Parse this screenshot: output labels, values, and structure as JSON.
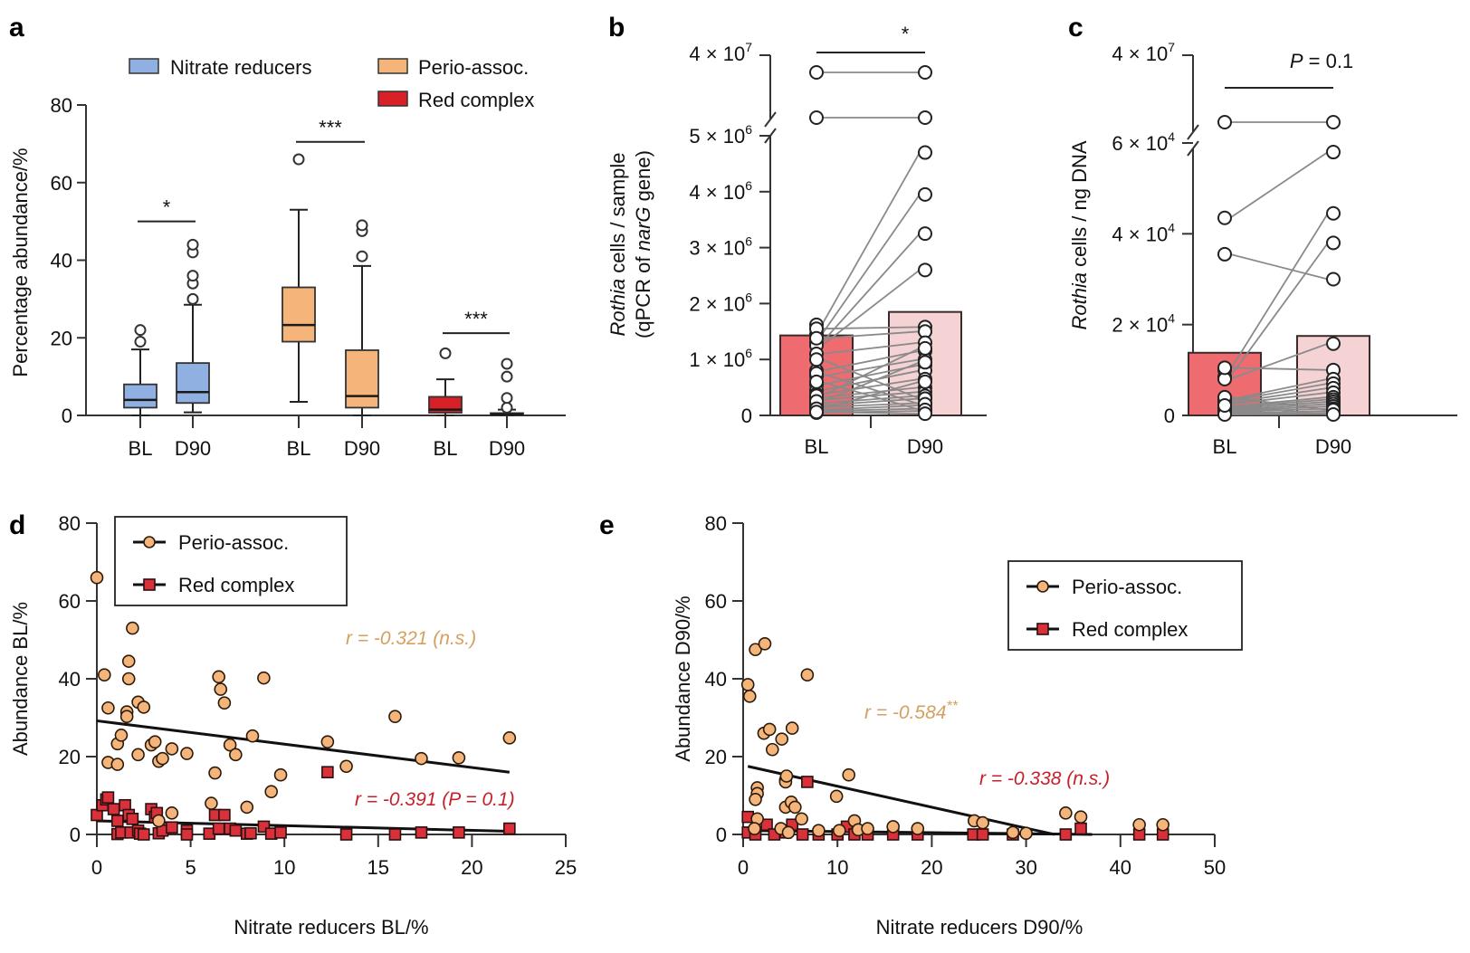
{
  "chart_data": [
    {
      "panel": "a",
      "type": "box",
      "ylabel": "Percentage abundance/%",
      "ylim": [
        0,
        80
      ],
      "yticks": [
        0,
        20,
        40,
        60,
        80
      ],
      "legend": [
        {
          "label": "Nitrate reducers",
          "color": "#8fb0e0"
        },
        {
          "label": "Perio-assoc.",
          "color": "#f5b57a"
        },
        {
          "label": "Red complex",
          "color": "#d92027"
        }
      ],
      "groups": [
        {
          "name": "Nitrate reducers",
          "color": "#8fb0e0",
          "significance": "*",
          "sig_y": 50,
          "boxes": [
            {
              "label": "BL",
              "min": 0,
              "q1": 2,
              "median": 4,
              "q3": 8,
              "max": 17,
              "outliers": [
                19,
                22
              ]
            },
            {
              "label": "D90",
              "min": 0.8,
              "q1": 3.2,
              "median": 6,
              "q3": 13.5,
              "max": 28.5,
              "outliers": [
                30,
                34,
                36,
                42,
                44
              ]
            }
          ]
        },
        {
          "name": "Perio-assoc.",
          "color": "#f5b57a",
          "significance": "***",
          "sig_y": 70.5,
          "boxes": [
            {
              "label": "BL",
              "min": 3.5,
              "q1": 19,
              "median": 23.3,
              "q3": 33,
              "max": 53,
              "outliers": [
                66
              ]
            },
            {
              "label": "D90",
              "min": 0,
              "q1": 2,
              "median": 5,
              "q3": 16.8,
              "max": 38.5,
              "outliers": [
                41,
                47.5,
                49
              ]
            }
          ]
        },
        {
          "name": "Red complex",
          "color": "#d92027",
          "significance": "***",
          "sig_y": 21.2,
          "boxes": [
            {
              "label": "BL",
              "min": 0,
              "q1": 0.7,
              "median": 1.5,
              "q3": 4.8,
              "max": 9.3,
              "outliers": [
                16
              ]
            },
            {
              "label": "D90",
              "min": 0,
              "q1": 0.1,
              "median": 0.3,
              "q3": 0.6,
              "max": 1.5,
              "outliers": [
                2,
                4.5,
                10,
                13.3
              ]
            }
          ]
        }
      ]
    },
    {
      "panel": "b",
      "type": "bar",
      "ylabel_italic": "Rothia",
      "ylabel_rest": " cells / sample",
      "ylabel2_pre": "(qPCR of ",
      "ylabel2_italic": "narG",
      "ylabel2_post": " gene)",
      "categories": [
        "BL",
        "D90"
      ],
      "bar_values": [
        1430000,
        1850000
      ],
      "bar_colors": [
        "#ee6b70",
        "#f5d3d4"
      ],
      "significance": "*",
      "yticks_lower": [
        0,
        1000000,
        2000000,
        3000000,
        4000000,
        5000000
      ],
      "ytick_labels_lower": [
        {
          "base": "0",
          "exp": ""
        },
        {
          "base": "1 × 10",
          "exp": "6"
        },
        {
          "base": "2 × 10",
          "exp": "6"
        },
        {
          "base": "3 × 10",
          "exp": "6"
        },
        {
          "base": "4 × 10",
          "exp": "6"
        },
        {
          "base": "5 × 10",
          "exp": "6"
        }
      ],
      "ytick_upper": {
        "value": 40000000,
        "base": "4 × 10",
        "exp": "7"
      },
      "axis_break": true,
      "pairs_broken_axis": [
        [
          36000000,
          36000000
        ],
        [
          25000000,
          25000000
        ]
      ],
      "pairs": [
        [
          1620000,
          4700000
        ],
        [
          1450000,
          3950000
        ],
        [
          1300000,
          3250000
        ],
        [
          1250000,
          2600000
        ],
        [
          1550000,
          1580000
        ],
        [
          1380000,
          1500000
        ],
        [
          1100000,
          1300000
        ],
        [
          800000,
          1150000
        ],
        [
          700000,
          1000000
        ],
        [
          550000,
          900000
        ],
        [
          450000,
          800000
        ],
        [
          380000,
          650000
        ],
        [
          320000,
          500000
        ],
        [
          280000,
          420000
        ],
        [
          220000,
          350000
        ],
        [
          180000,
          300000
        ],
        [
          150000,
          220000
        ],
        [
          100000,
          180000
        ],
        [
          80000,
          120000
        ],
        [
          50000,
          80000
        ],
        [
          1000000,
          300000
        ],
        [
          750000,
          200000
        ],
        [
          600000,
          100000
        ],
        [
          350000,
          1200000
        ],
        [
          250000,
          950000
        ],
        [
          120000,
          600000
        ],
        [
          60000,
          30000
        ]
      ]
    },
    {
      "panel": "c",
      "type": "bar",
      "ylabel_italic": "Rothia",
      "ylabel_rest": " cells / ng DNA",
      "categories": [
        "BL",
        "D90"
      ],
      "bar_values": [
        13800,
        17500
      ],
      "bar_colors": [
        "#ee6b70",
        "#f5d3d4"
      ],
      "significance_italic": "P",
      "significance_rest": " = 0.1",
      "yticks_lower": [
        0,
        20000,
        40000,
        60000
      ],
      "ytick_labels_lower": [
        {
          "base": "0",
          "exp": ""
        },
        {
          "base": "2 × 10",
          "exp": "4"
        },
        {
          "base": "4 × 10",
          "exp": "4"
        },
        {
          "base": "6 × 10",
          "exp": "4"
        }
      ],
      "ytick_upper": {
        "value": 40000000,
        "base": "4 × 10",
        "exp": "7"
      },
      "axis_break": true,
      "pairs_broken_axis": [
        [
          30000000,
          30000000
        ]
      ],
      "pairs": [
        [
          43500,
          58000
        ],
        [
          35500,
          30000
        ],
        [
          10000,
          44500
        ],
        [
          8500,
          38000
        ],
        [
          8000,
          15800
        ],
        [
          10500,
          10000
        ],
        [
          3500,
          8000
        ],
        [
          3200,
          7000
        ],
        [
          2800,
          6000
        ],
        [
          2500,
          5000
        ],
        [
          2000,
          4000
        ],
        [
          1800,
          3500
        ],
        [
          1500,
          3000
        ],
        [
          1200,
          2500
        ],
        [
          1000,
          2000
        ],
        [
          800,
          1500
        ],
        [
          500,
          1000
        ],
        [
          300,
          600
        ],
        [
          200,
          300
        ],
        [
          4000,
          1200
        ],
        [
          2200,
          200
        ]
      ]
    },
    {
      "panel": "d",
      "type": "scatter",
      "xlabel": "Nitrate reducers BL/%",
      "ylabel": "Abundance BL/%",
      "xlim": [
        0,
        25
      ],
      "ylim": [
        0,
        80
      ],
      "xticks": [
        0,
        5,
        10,
        15,
        20,
        25
      ],
      "yticks": [
        0,
        20,
        40,
        60,
        80
      ],
      "legend_position": "top-left",
      "series": [
        {
          "name": "Perio-assoc.",
          "marker": "circle",
          "color": "#f5b57a",
          "fit": {
            "x0": 0,
            "y0": 29.2,
            "x1": 22,
            "y1": 16
          },
          "annotation": "r = -0.321 (n.s.)",
          "annotation_color": "#d4a060",
          "points": [
            [
              0,
              66
            ],
            [
              0.4,
              41
            ],
            [
              0.6,
              32.5
            ],
            [
              0.6,
              18.5
            ],
            [
              1.1,
              18
            ],
            [
              1.1,
              23.3
            ],
            [
              1.3,
              25.5
            ],
            [
              1.6,
              31.5
            ],
            [
              1.6,
              30.3
            ],
            [
              1.7,
              44.5
            ],
            [
              1.7,
              40
            ],
            [
              1.9,
              53
            ],
            [
              2.2,
              34
            ],
            [
              2.2,
              20.5
            ],
            [
              2.5,
              32.7
            ],
            [
              2.9,
              23
            ],
            [
              3.1,
              23.8
            ],
            [
              3.3,
              18.8
            ],
            [
              3.5,
              19.5
            ],
            [
              4.0,
              22
            ],
            [
              4.8,
              20.8
            ],
            [
              3.3,
              3.5
            ],
            [
              4.0,
              5.5
            ],
            [
              6.1,
              8
            ],
            [
              6.3,
              15.8
            ],
            [
              6.5,
              40.5
            ],
            [
              6.6,
              37.3
            ],
            [
              6.8,
              33.8
            ],
            [
              7.1,
              23
            ],
            [
              7.4,
              20.5
            ],
            [
              8.0,
              7
            ],
            [
              8.3,
              25.3
            ],
            [
              8.9,
              40.2
            ],
            [
              9.3,
              11
            ],
            [
              9.8,
              15.3
            ],
            [
              12.3,
              23.8
            ],
            [
              13.3,
              17.5
            ],
            [
              15.9,
              30.3
            ],
            [
              17.3,
              19.5
            ],
            [
              19.3,
              19.7
            ],
            [
              22,
              24.8
            ]
          ]
        },
        {
          "name": "Red complex",
          "marker": "square",
          "color": "#d9303a",
          "fit": {
            "x0": 0,
            "y0": 3.5,
            "x1": 22,
            "y1": 0.8
          },
          "annotation": "r = -0.391 (P = 0.1)",
          "annotation_color": "#c8202a",
          "points": [
            [
              0,
              5
            ],
            [
              0.3,
              7.5
            ],
            [
              0.5,
              9
            ],
            [
              0.6,
              9.5
            ],
            [
              0.9,
              6.5
            ],
            [
              1.1,
              3.5
            ],
            [
              1.1,
              0.1
            ],
            [
              1.3,
              0.5
            ],
            [
              1.5,
              7.5
            ],
            [
              1.7,
              5
            ],
            [
              1.8,
              0.5
            ],
            [
              1.9,
              4
            ],
            [
              2.2,
              1
            ],
            [
              2.3,
              0.2
            ],
            [
              2.5,
              0
            ],
            [
              2.9,
              6.5
            ],
            [
              3.1,
              4.5
            ],
            [
              3.2,
              5.5
            ],
            [
              3.3,
              0.3
            ],
            [
              3.5,
              1
            ],
            [
              4.0,
              1.8
            ],
            [
              4.8,
              1
            ],
            [
              4.8,
              0
            ],
            [
              6.0,
              0.2
            ],
            [
              6.3,
              5
            ],
            [
              6.5,
              1.5
            ],
            [
              6.8,
              5
            ],
            [
              7.1,
              1.5
            ],
            [
              7.4,
              1
            ],
            [
              8.0,
              0.2
            ],
            [
              8.2,
              0.3
            ],
            [
              8.9,
              2
            ],
            [
              9.3,
              0.2
            ],
            [
              9.8,
              0.5
            ],
            [
              12.3,
              16
            ],
            [
              13.3,
              0
            ],
            [
              15.9,
              0
            ],
            [
              17.3,
              0.5
            ],
            [
              19.3,
              0.5
            ],
            [
              22,
              1.5
            ]
          ]
        }
      ]
    },
    {
      "panel": "e",
      "type": "scatter",
      "xlabel": "Nitrate reducers D90/%",
      "ylabel": "Abundance D90/%",
      "xlim": [
        0,
        50
      ],
      "ylim": [
        0,
        80
      ],
      "xticks": [
        0,
        10,
        20,
        30,
        40,
        50
      ],
      "yticks": [
        0,
        20,
        40,
        60,
        80
      ],
      "legend_position": "top-right",
      "series": [
        {
          "name": "Perio-assoc.",
          "marker": "circle",
          "color": "#f5b57a",
          "fit": {
            "x0": 0.5,
            "y0": 17.5,
            "x1": 33,
            "y1": 0
          },
          "annotation": "r = -0.584",
          "annotation_sup": "**",
          "annotation_color": "#d4a060",
          "points": [
            [
              0.5,
              38.5
            ],
            [
              0.7,
              35.5
            ],
            [
              1.3,
              47.5
            ],
            [
              2.3,
              49
            ],
            [
              1.5,
              12
            ],
            [
              1.5,
              10.5
            ],
            [
              1.3,
              9
            ],
            [
              2.2,
              26
            ],
            [
              2.8,
              27
            ],
            [
              3.1,
              21.8
            ],
            [
              4.1,
              24.5
            ],
            [
              4.5,
              14
            ],
            [
              4.5,
              13.5
            ],
            [
              4.6,
              15
            ],
            [
              5.2,
              27.3
            ],
            [
              4.5,
              7
            ],
            [
              5.1,
              8.3
            ],
            [
              5.5,
              7
            ],
            [
              6.2,
              4
            ],
            [
              6.8,
              41
            ],
            [
              1.5,
              4
            ],
            [
              1.2,
              1.5
            ],
            [
              4.0,
              1.5
            ],
            [
              4.8,
              0.5
            ],
            [
              8,
              1
            ],
            [
              9.9,
              9.8
            ],
            [
              10.2,
              1
            ],
            [
              11.2,
              15.3
            ],
            [
              11.8,
              3.5
            ],
            [
              12.2,
              1.2
            ],
            [
              13.2,
              1.5
            ],
            [
              15.9,
              2
            ],
            [
              18.5,
              1.5
            ],
            [
              24.5,
              3.5
            ],
            [
              25.4,
              3
            ],
            [
              28.6,
              0.5
            ],
            [
              30,
              0.3
            ],
            [
              34.2,
              5.5
            ],
            [
              35.8,
              4.5
            ],
            [
              42,
              2.5
            ],
            [
              44.5,
              2.5
            ]
          ]
        },
        {
          "name": "Red complex",
          "marker": "square",
          "color": "#d9303a",
          "fit": {
            "x0": 0.5,
            "y0": 1.0,
            "x1": 37,
            "y1": 0
          },
          "annotation": "r = -0.338 (n.s.)",
          "annotation_color": "#c8202a",
          "points": [
            [
              0.5,
              4.5
            ],
            [
              0.5,
              0.5
            ],
            [
              1.3,
              0
            ],
            [
              2.5,
              2.5
            ],
            [
              3.3,
              0
            ],
            [
              4.5,
              0.5
            ],
            [
              5.2,
              2.5
            ],
            [
              6.3,
              0
            ],
            [
              6.8,
              13.5
            ],
            [
              8,
              0
            ],
            [
              10,
              0
            ],
            [
              11.0,
              2
            ],
            [
              11.8,
              0
            ],
            [
              13.2,
              0
            ],
            [
              15.9,
              0
            ],
            [
              18.5,
              0
            ],
            [
              24.4,
              0
            ],
            [
              25.4,
              0
            ],
            [
              28.6,
              0
            ],
            [
              34.2,
              0
            ],
            [
              35.8,
              1.5
            ],
            [
              42,
              0
            ],
            [
              44.5,
              0
            ]
          ]
        }
      ]
    }
  ],
  "panel_labels": [
    "a",
    "b",
    "c",
    "d",
    "e"
  ],
  "category_labels": {
    "bl": "BL",
    "d90": "D90"
  }
}
